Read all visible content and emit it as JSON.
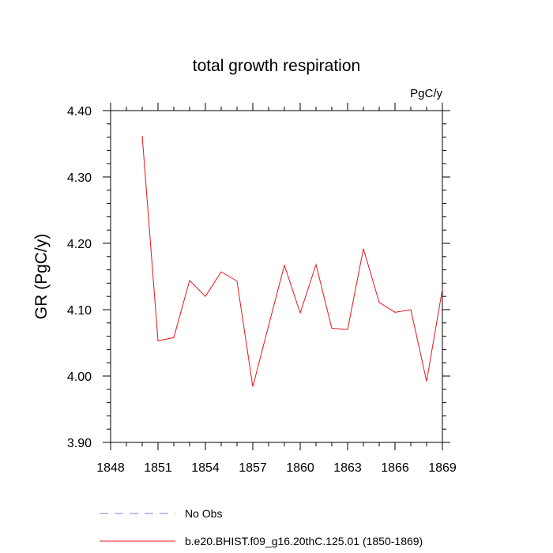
{
  "chart_data": {
    "type": "line",
    "title": "total growth respiration",
    "units_label": "PgC/y",
    "ylabel": "GR  (PgC/y)",
    "xlabel": "",
    "xlim": [
      1848,
      1869
    ],
    "ylim": [
      3.9,
      4.4
    ],
    "x_ticks": [
      1848,
      1851,
      1854,
      1857,
      1860,
      1863,
      1866,
      1869
    ],
    "x_tick_labels": [
      "1848",
      "1851",
      "1854",
      "1857",
      "1860",
      "1863",
      "1866",
      "1869"
    ],
    "y_ticks": [
      3.9,
      4.0,
      4.1,
      4.2,
      4.3,
      4.4
    ],
    "y_tick_labels": [
      "3.90",
      "4.00",
      "4.10",
      "4.20",
      "4.30",
      "4.40"
    ],
    "grid": false,
    "legend_position": "bottom",
    "series": [
      {
        "name": "b.e20.BHIST.f09_g16.20thC.125.01 (1850-1869)",
        "color": "#e8141c",
        "dash": "solid",
        "x": [
          1850,
          1851,
          1852,
          1853,
          1854,
          1855,
          1856,
          1857,
          1858,
          1859,
          1860,
          1861,
          1862,
          1863,
          1864,
          1865,
          1866,
          1867,
          1868,
          1869
        ],
        "values": [
          4.362,
          4.053,
          4.058,
          4.144,
          4.12,
          4.157,
          4.143,
          3.984,
          4.076,
          4.167,
          4.095,
          4.168,
          4.072,
          4.07,
          4.192,
          4.111,
          4.096,
          4.1,
          3.992,
          4.131
        ]
      }
    ],
    "legend": [
      {
        "label": "No Obs",
        "color": "#7b7bdc",
        "dash": "dashed"
      },
      {
        "label": "b.e20.BHIST.f09_g16.20thC.125.01 (1850-1869)",
        "color": "#e8141c",
        "dash": "solid"
      }
    ]
  }
}
